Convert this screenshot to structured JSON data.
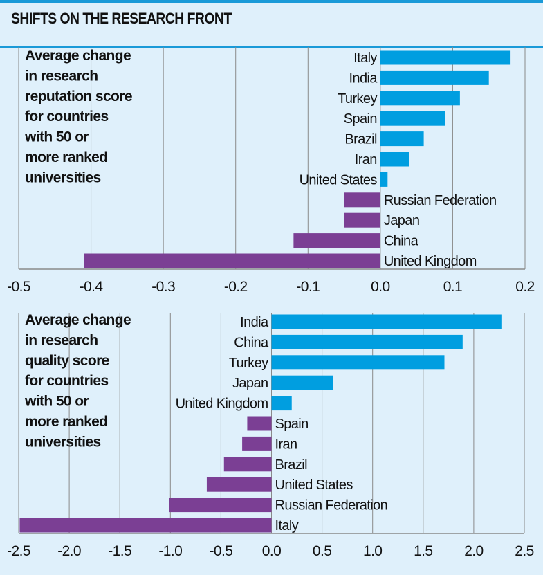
{
  "title": "SHIFTS ON THE RESEARCH FRONT",
  "colors": {
    "background": "#dff0fb",
    "positive": "#009ee0",
    "negative": "#7b3f94",
    "grid": "#8a8a8a",
    "rule": "#1a9ad8"
  },
  "chart_data": [
    {
      "type": "bar",
      "orientation": "horizontal",
      "caption": [
        "Average change",
        "in research",
        "reputation score",
        "for countries",
        "with 50 or",
        "more ranked",
        "universities"
      ],
      "categories": [
        "Italy",
        "India",
        "Turkey",
        "Spain",
        "Brazil",
        "Iran",
        "United States",
        "Russian Federation",
        "Japan",
        "China",
        "United Kingdom"
      ],
      "values": [
        0.18,
        0.15,
        0.11,
        0.09,
        0.06,
        0.04,
        0.01,
        -0.05,
        -0.05,
        -0.12,
        -0.41
      ],
      "xlim": [
        -0.5,
        0.2
      ],
      "ticks": [
        "-0.5",
        "-0.4",
        "-0.3",
        "-0.2",
        "-0.1",
        "0.0",
        "0.1",
        "0.2"
      ],
      "grid": true
    },
    {
      "type": "bar",
      "orientation": "horizontal",
      "caption": [
        "Average change",
        "in research",
        "quality score",
        "for countries",
        "with 50 or",
        "more ranked",
        "universities"
      ],
      "categories": [
        "India",
        "China",
        "Turkey",
        "Japan",
        "United Kingdom",
        "Spain",
        "Iran",
        "Brazil",
        "United States",
        "Russian Federation",
        "Italy"
      ],
      "values": [
        2.28,
        1.89,
        1.71,
        0.61,
        0.2,
        -0.24,
        -0.29,
        -0.47,
        -0.64,
        -1.01,
        -2.49
      ],
      "xlim": [
        -2.5,
        2.5
      ],
      "ticks": [
        "-2.5",
        "-2.0",
        "-1.5",
        "-1.0",
        "-0.5",
        "0.0",
        "0.5",
        "1.0",
        "1.5",
        "2.0",
        "2.5"
      ],
      "grid": true
    }
  ]
}
